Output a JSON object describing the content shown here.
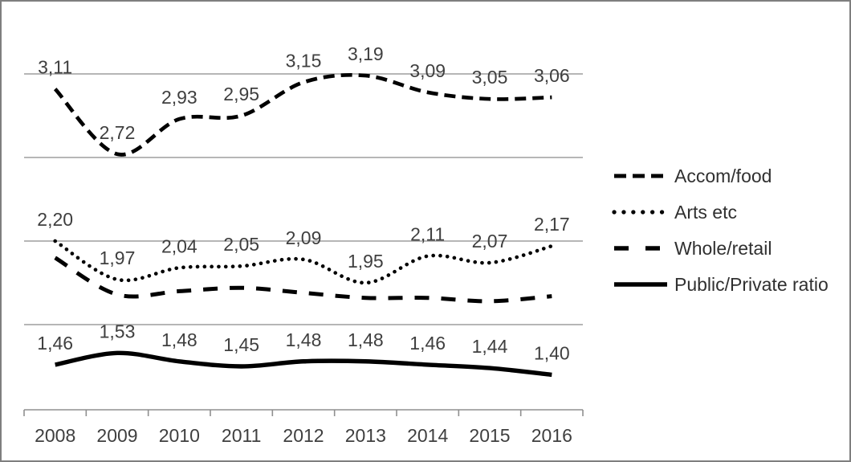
{
  "window": {
    "background": "#ffffff",
    "frame_border": "#7f7f7f"
  },
  "chart_data": {
    "type": "line",
    "title": "",
    "xlabel": "",
    "ylabel": "",
    "x_categories": [
      "2008",
      "2009",
      "2010",
      "2011",
      "2012",
      "2013",
      "2014",
      "2015",
      "2016"
    ],
    "y_gridline_values": [
      3.2,
      2.7,
      2.2,
      1.7
    ],
    "ylim": [
      1.19,
      3.64
    ],
    "grid": true,
    "legend_position": "right",
    "decimal_separator": ",",
    "series": [
      {
        "name": "Accom/food",
        "line_style": "dash",
        "values": [
          3.11,
          2.72,
          2.93,
          2.95,
          3.15,
          3.19,
          3.09,
          3.05,
          3.06
        ],
        "labels": [
          "3,11",
          "2,72",
          "2,93",
          "2,95",
          "3,15",
          "3,19",
          "3,09",
          "3,05",
          "3,06"
        ]
      },
      {
        "name": "Arts etc",
        "line_style": "dot",
        "values": [
          2.2,
          1.97,
          2.04,
          2.05,
          2.09,
          1.95,
          2.11,
          2.07,
          2.17
        ],
        "labels": [
          "2,20",
          "1,97",
          "2,04",
          "2,05",
          "2,09",
          "1,95",
          "2,11",
          "2,07",
          "2,17"
        ]
      },
      {
        "name": "Whole/retail",
        "line_style": "long-dash",
        "values": [
          2.1,
          1.88,
          1.9,
          1.92,
          1.89,
          1.86,
          1.86,
          1.84,
          1.87
        ],
        "labels": []
      },
      {
        "name": "Public/Private ratio",
        "line_style": "solid",
        "values": [
          1.46,
          1.53,
          1.48,
          1.45,
          1.48,
          1.48,
          1.46,
          1.44,
          1.4
        ],
        "labels": [
          "1,46",
          "1,53",
          "1,48",
          "1,45",
          "1,48",
          "1,48",
          "1,46",
          "1,44",
          "1,40"
        ]
      }
    ],
    "colors": {
      "series_line": "#000000",
      "gridline": "#9e9e9e",
      "axis_line": "#8f8f8f",
      "data_label_text": "#3f3f3f",
      "axis_label_text": "#3f3f3f",
      "legend_text": "#303030"
    }
  }
}
